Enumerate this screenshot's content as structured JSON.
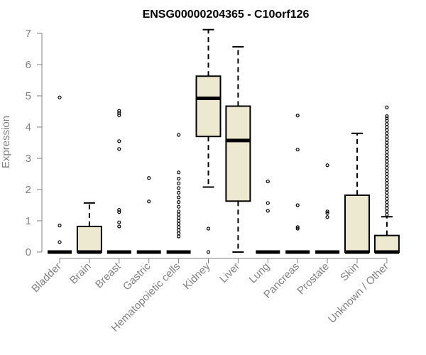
{
  "chart_data": {
    "type": "boxplot",
    "title": "ENSG00000204365 - C10orf126",
    "ylabel": "Expression",
    "xlabel": "",
    "ylim": [
      0,
      7.25
    ],
    "yticks": [
      0,
      1,
      2,
      3,
      4,
      5,
      6,
      7
    ],
    "categories": [
      "Bladder",
      "Brain",
      "Breast",
      "Gastric",
      "Hematopoietic cells",
      "Kidney",
      "Liver",
      "Lung",
      "Pancreas",
      "Prostate",
      "Skin",
      "Unknown / Other"
    ],
    "box_fill": "#ede8d0",
    "boxes": [
      {
        "min": 0,
        "q1": 0,
        "median": 0,
        "q3": 0,
        "max": 0,
        "outliers": [
          4.95,
          0.85,
          0.32
        ]
      },
      {
        "min": 0,
        "q1": 0,
        "median": 0,
        "q3": 0.82,
        "max": 1.57,
        "outliers": []
      },
      {
        "min": 0,
        "q1": 0,
        "median": 0,
        "q3": 0,
        "max": 0,
        "outliers": [
          4.52,
          4.45,
          4.38,
          3.55,
          3.3,
          1.35,
          1.28,
          0.95,
          0.82
        ]
      },
      {
        "min": 0,
        "q1": 0,
        "median": 0,
        "q3": 0,
        "max": 0,
        "outliers": [
          2.37,
          1.62
        ]
      },
      {
        "min": 0,
        "q1": 0,
        "median": 0,
        "q3": 0,
        "max": 0,
        "outliers": [
          3.75,
          2.55,
          2.35,
          2.2,
          2.05,
          1.9,
          1.75,
          1.6,
          1.45,
          1.3,
          1.2,
          1.1,
          1.0,
          0.9,
          0.8,
          0.7,
          0.6,
          0.5
        ]
      },
      {
        "min": 2.08,
        "q1": 3.7,
        "median": 4.92,
        "q3": 5.63,
        "max": 7.12,
        "outliers": [
          0.75,
          0.0
        ]
      },
      {
        "min": 0,
        "q1": 1.63,
        "median": 3.57,
        "q3": 4.67,
        "max": 6.57,
        "outliers": []
      },
      {
        "min": 0,
        "q1": 0,
        "median": 0,
        "q3": 0,
        "max": 0,
        "outliers": [
          2.26,
          1.57,
          1.32
        ]
      },
      {
        "min": 0,
        "q1": 0,
        "median": 0,
        "q3": 0,
        "max": 0,
        "outliers": [
          4.37,
          3.28,
          1.5,
          0.8,
          0.75
        ]
      },
      {
        "min": 0,
        "q1": 0,
        "median": 0,
        "q3": 0,
        "max": 0,
        "outliers": [
          2.78,
          1.3,
          1.25,
          1.12
        ]
      },
      {
        "min": 0,
        "q1": 0,
        "median": 0,
        "q3": 1.82,
        "max": 3.8,
        "outliers": []
      },
      {
        "min": 0,
        "q1": 0,
        "median": 0,
        "q3": 0.53,
        "max": 1.13,
        "outliers": [
          4.63,
          4.35,
          4.28,
          4.2,
          4.1,
          4.0,
          3.9,
          3.8,
          3.7,
          3.6,
          3.5,
          3.4,
          3.3,
          3.2,
          3.1,
          3.0,
          2.9,
          2.8,
          2.7,
          2.6,
          2.5,
          2.4,
          2.3,
          2.2,
          2.1,
          2.0,
          1.9,
          1.8,
          1.7,
          1.6,
          1.5,
          1.4,
          1.3,
          1.2
        ]
      }
    ]
  }
}
